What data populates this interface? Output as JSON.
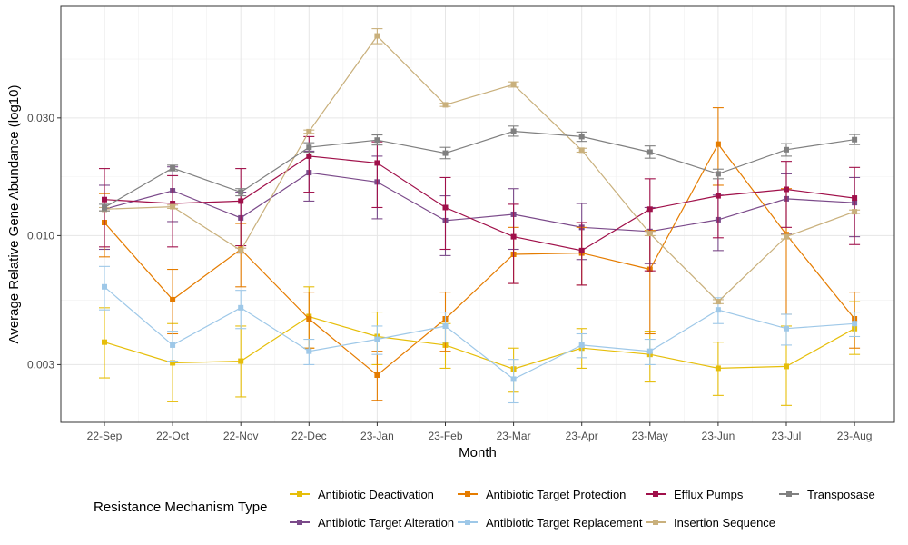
{
  "chart_data": {
    "type": "line",
    "xlabel": "Month",
    "ylabel": "Average Relative Gene Abundance (log10)",
    "y_scale": "log10",
    "ylim": [
      0.00175,
      0.085
    ],
    "y_ticks": [
      0.003,
      0.01,
      0.03
    ],
    "y_tick_labels": [
      "0.003",
      "0.010",
      "0.030"
    ],
    "grid": true,
    "legend_position": "bottom",
    "legend_title": "Resistance Mechanism Type",
    "categories": [
      "22-Sep",
      "22-Oct",
      "22-Nov",
      "22-Dec",
      "23-Jan",
      "23-Feb",
      "23-Mar",
      "23-Apr",
      "23-May",
      "23-Jun",
      "23-Jul",
      "23-Aug"
    ],
    "series": [
      {
        "name": "Antibiotic Deactivation",
        "color": "#E6BE0A",
        "values": [
          0.0037,
          0.00305,
          0.0031,
          0.0047,
          0.0039,
          0.0036,
          0.00288,
          0.0035,
          0.0033,
          0.0029,
          0.00295,
          0.0042
        ],
        "err_low": [
          0.00265,
          0.00212,
          0.00222,
          0.0035,
          0.003,
          0.0029,
          0.00232,
          0.0029,
          0.00255,
          0.00225,
          0.00205,
          0.0033
        ],
        "err_high": [
          0.0051,
          0.0044,
          0.0043,
          0.0062,
          0.0049,
          0.0044,
          0.0035,
          0.0042,
          0.0041,
          0.0037,
          0.0043,
          0.0054
        ]
      },
      {
        "name": "Antibiotic Target Alteration",
        "color": "#7B4A8A",
        "values": [
          0.0128,
          0.0152,
          0.0118,
          0.018,
          0.0165,
          0.0115,
          0.0122,
          0.0108,
          0.0104,
          0.0116,
          0.0141,
          0.0136
        ],
        "err_low": [
          0.0088,
          0.0114,
          0.0085,
          0.0138,
          0.0117,
          0.0083,
          0.0088,
          0.008,
          0.0077,
          0.0087,
          0.0102,
          0.0099
        ],
        "err_high": [
          0.016,
          0.019,
          0.015,
          0.022,
          0.021,
          0.0145,
          0.0155,
          0.0135,
          0.013,
          0.0146,
          0.0178,
          0.0172
        ]
      },
      {
        "name": "Antibiotic Target Protection",
        "color": "#E57C00",
        "values": [
          0.0113,
          0.0055,
          0.0088,
          0.0046,
          0.00272,
          0.0046,
          0.0084,
          0.0085,
          0.0073,
          0.0235,
          0.0101,
          0.0046
        ],
        "err_low": [
          0.0082,
          0.004,
          0.0062,
          0.0035,
          0.00215,
          0.0034,
          0.0064,
          0.0063,
          0.004,
          0.016,
          0.0048,
          0.0035
        ],
        "err_high": [
          0.0148,
          0.0073,
          0.0112,
          0.0059,
          0.0034,
          0.0059,
          0.0108,
          0.0108,
          0.0105,
          0.033,
          0.0155,
          0.0059
        ]
      },
      {
        "name": "Antibiotic Target Replacement",
        "color": "#9EC8E8",
        "values": [
          0.0062,
          0.0036,
          0.0051,
          0.0034,
          0.0038,
          0.0043,
          0.00262,
          0.0036,
          0.0034,
          0.005,
          0.0042,
          0.0044
        ],
        "err_low": [
          0.005,
          0.0031,
          0.0042,
          0.003,
          0.0033,
          0.0037,
          0.0021,
          0.0032,
          0.003,
          0.0044,
          0.0036,
          0.0039
        ],
        "err_high": [
          0.0075,
          0.0041,
          0.006,
          0.0038,
          0.0043,
          0.0049,
          0.00315,
          0.004,
          0.0038,
          0.0056,
          0.0048,
          0.0049
        ]
      },
      {
        "name": "Efflux Pumps",
        "color": "#A0104A",
        "values": [
          0.014,
          0.0135,
          0.0138,
          0.021,
          0.0197,
          0.013,
          0.0099,
          0.0087,
          0.0128,
          0.0145,
          0.0154,
          0.0142
        ],
        "err_low": [
          0.009,
          0.009,
          0.0091,
          0.015,
          0.013,
          0.0088,
          0.0064,
          0.0063,
          0.0072,
          0.0098,
          0.0108,
          0.0092
        ],
        "err_high": [
          0.0187,
          0.0175,
          0.0187,
          0.0252,
          0.024,
          0.0172,
          0.0134,
          0.0113,
          0.017,
          0.018,
          0.02,
          0.0189
        ]
      },
      {
        "name": "Insertion Sequence",
        "color": "#C9B07C",
        "values": [
          0.0128,
          0.0131,
          0.0087,
          0.0264,
          0.0645,
          0.0339,
          0.041,
          0.0222,
          0.0102,
          0.0054,
          0.0099,
          0.0125
        ],
        "err_low": [
          0.0126,
          0.0129,
          0.0085,
          0.026,
          0.06,
          0.0334,
          0.04,
          0.0218,
          0.01,
          0.0053,
          0.0097,
          0.0123
        ],
        "err_high": [
          0.013,
          0.0133,
          0.0089,
          0.0268,
          0.069,
          0.0344,
          0.042,
          0.0226,
          0.0104,
          0.0055,
          0.0101,
          0.0127
        ]
      },
      {
        "name": "Transposase",
        "color": "#808080",
        "values": [
          0.013,
          0.0188,
          0.015,
          0.0228,
          0.0244,
          0.0216,
          0.0265,
          0.0252,
          0.0218,
          0.0178,
          0.0223,
          0.0245
        ],
        "err_low": [
          0.0126,
          0.0183,
          0.0145,
          0.0218,
          0.0233,
          0.0205,
          0.0253,
          0.0241,
          0.0206,
          0.017,
          0.021,
          0.0234
        ],
        "err_high": [
          0.0134,
          0.0193,
          0.0155,
          0.0238,
          0.0256,
          0.0228,
          0.0278,
          0.0263,
          0.0231,
          0.0186,
          0.0236,
          0.0257
        ]
      }
    ]
  },
  "legend_rows": [
    [
      0,
      2,
      4,
      6
    ],
    [
      1,
      3,
      5
    ]
  ]
}
